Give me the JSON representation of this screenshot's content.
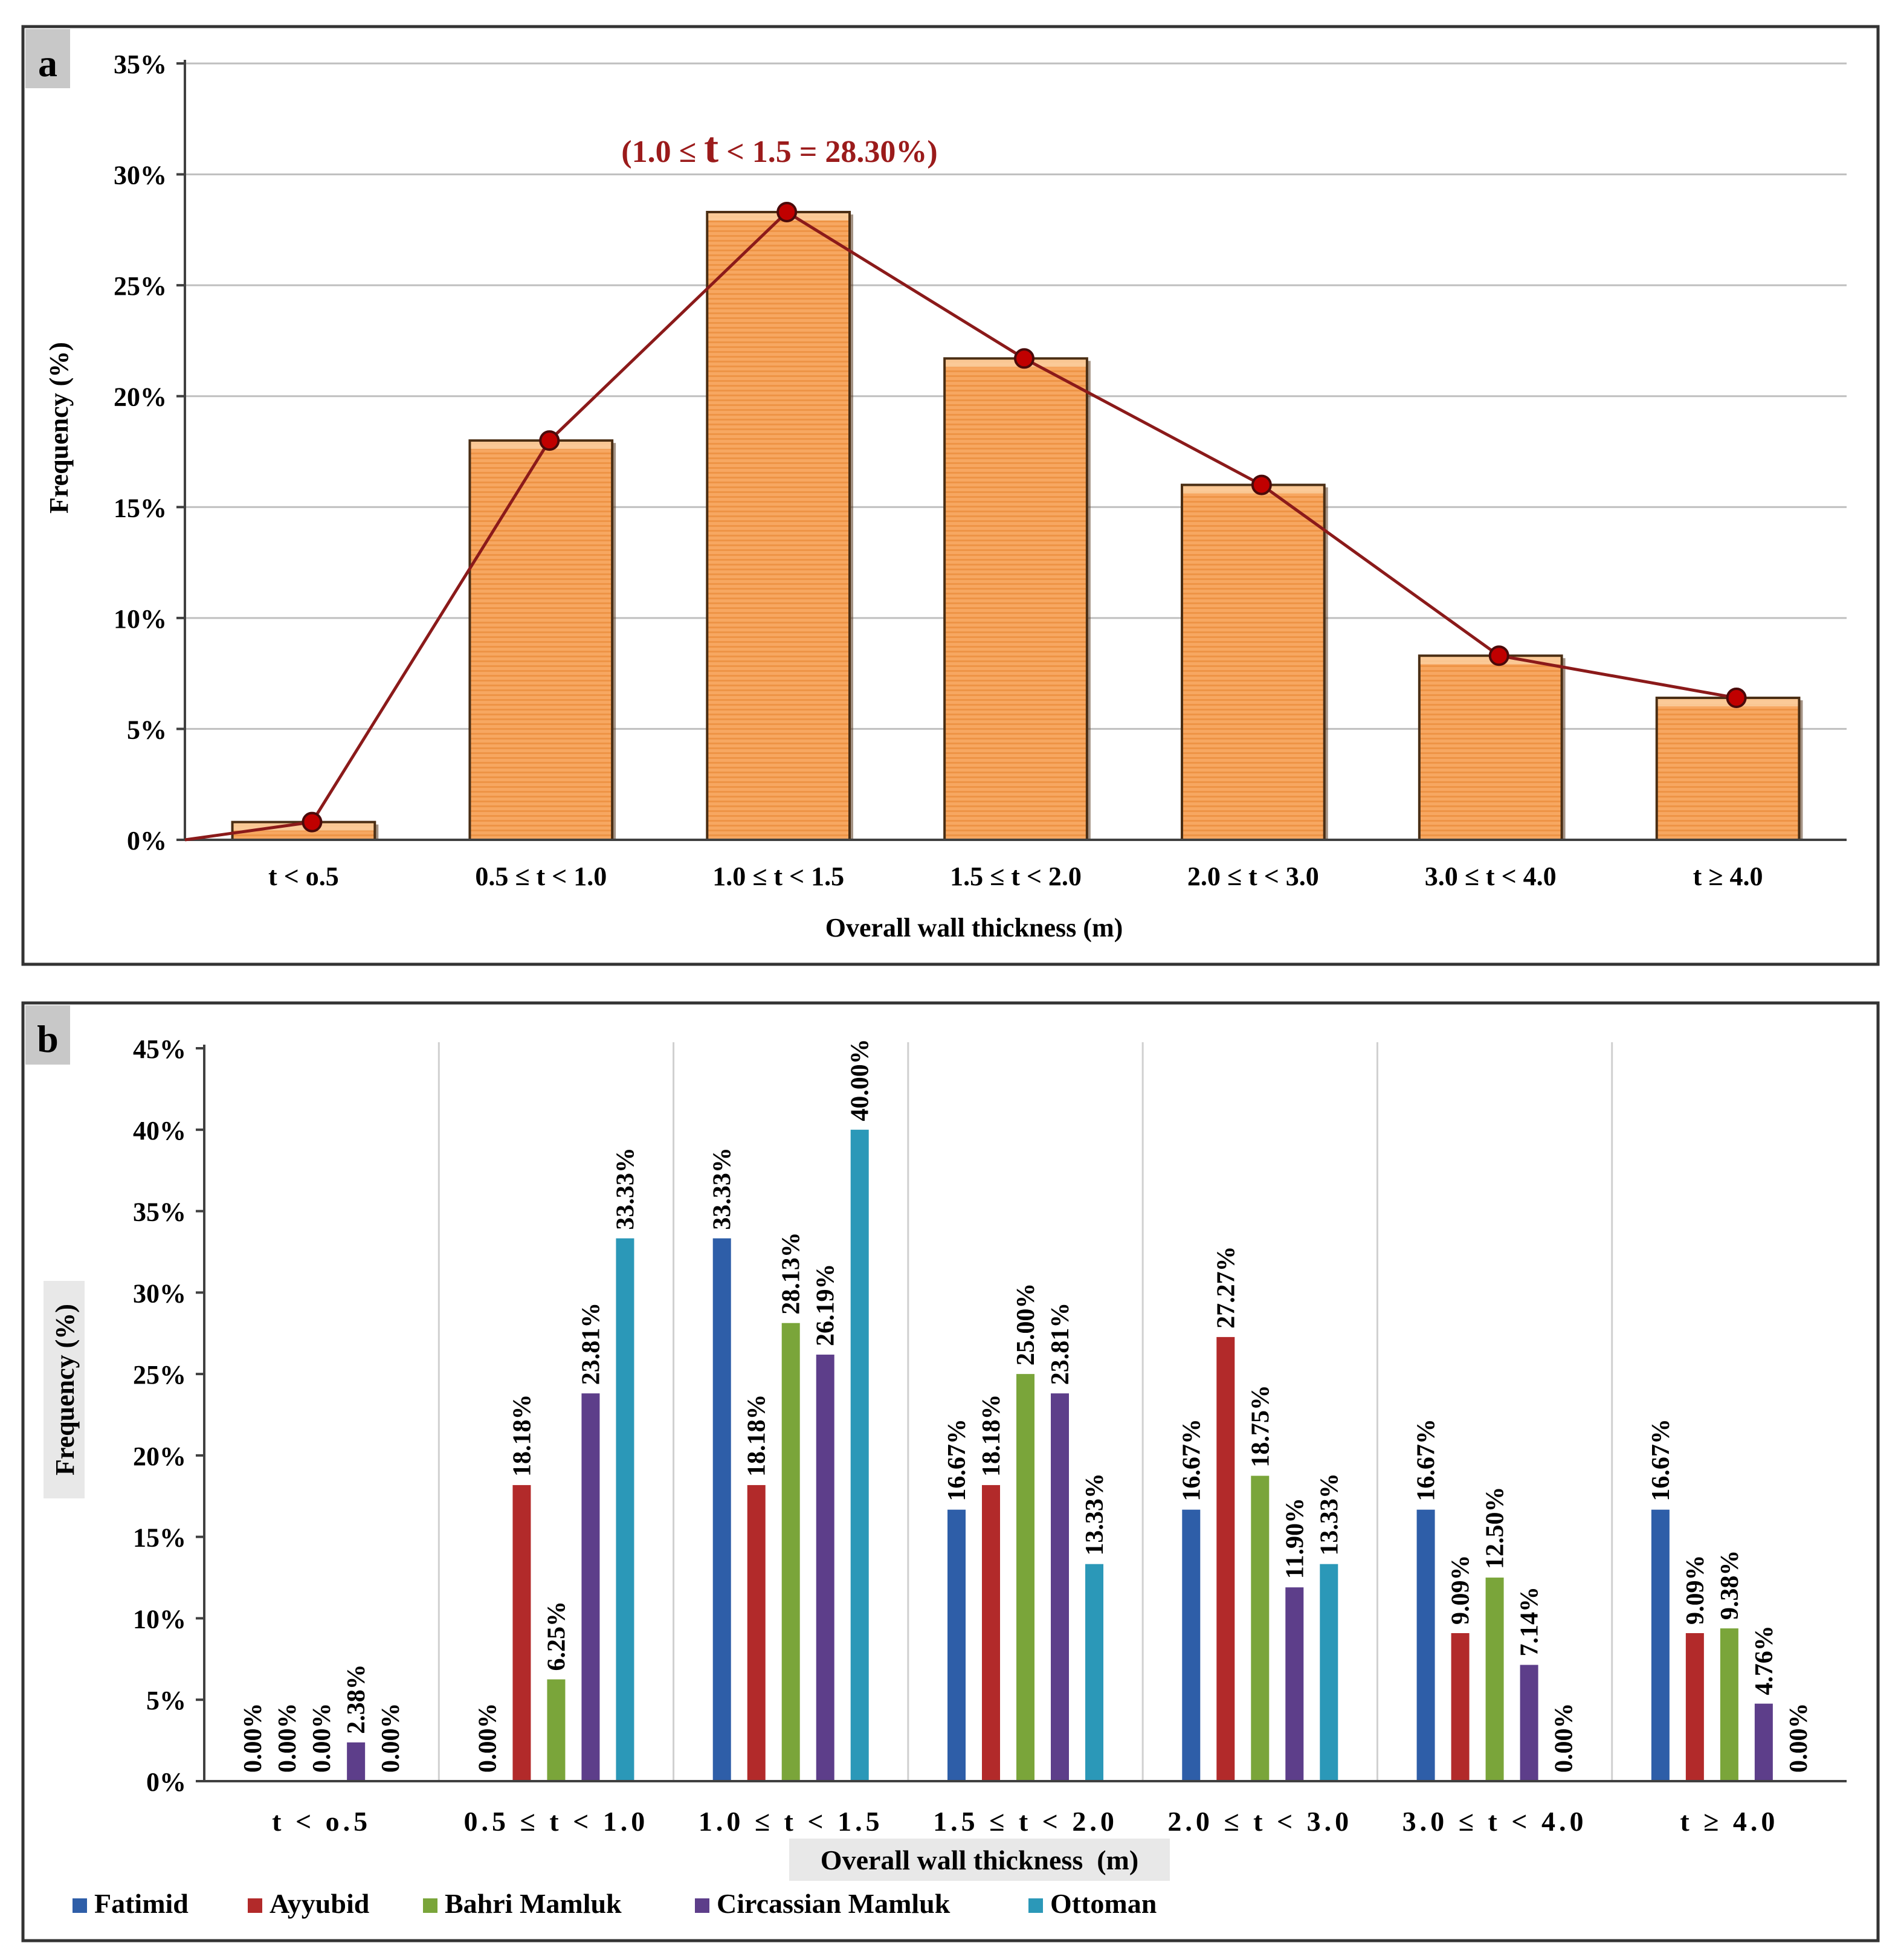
{
  "panels": {
    "a": {
      "label": "a"
    },
    "b": {
      "label": "b"
    }
  },
  "colors": {
    "bar_a": "#f5a05a",
    "line_a": "#8b1a1a",
    "point_a": "#c00000",
    "annotation": "#9b1b1b",
    "grid": "#bfbfbf",
    "axis": "#404040",
    "text": "#000000",
    "panel_border": "#333333",
    "panel_label_bg": "#c8c8c8"
  },
  "chart_data": [
    {
      "id": "a",
      "type": "bar",
      "title": "",
      "categories": [
        "t < o.5",
        "0.5 ≤ t < 1.0",
        "1.0 ≤ t < 1.5",
        "1.5 ≤ t < 2.0",
        "2.0 ≤ t < 3.0",
        "3.0 ≤ t < 4.0",
        "t ≥ 4.0"
      ],
      "values": [
        0.8,
        18.0,
        28.3,
        21.7,
        16.0,
        8.3,
        6.4
      ],
      "line_overlay": {
        "start": 0,
        "values": [
          0.8,
          18.0,
          28.3,
          21.7,
          16.0,
          8.3,
          6.4
        ]
      },
      "xlabel": "Overall wall thickness (m)",
      "ylabel": "Frequency (%)",
      "ylim": [
        0,
        35
      ],
      "yticks": [
        0,
        5,
        10,
        15,
        20,
        25,
        30,
        35
      ],
      "ytick_labels": [
        "0%",
        "5%",
        "10%",
        "15%",
        "20%",
        "25%",
        "30%",
        "35%"
      ],
      "grid": true,
      "annotation": {
        "pre": "(1.0 ≤ ",
        "emph": "t",
        "post": " < 1.5 = 28.30%)"
      }
    },
    {
      "id": "b",
      "type": "bar",
      "title": "",
      "categories": [
        "t < o.5",
        "0.5 ≤ t < 1.0",
        "1.0 ≤ t < 1.5",
        "1.5 ≤ t < 2.0",
        "2.0 ≤ t < 3.0",
        "3.0 ≤ t < 4.0",
        "t ≥ 4.0"
      ],
      "series": [
        {
          "name": "Fatimid",
          "color": "#2e5ea8",
          "values": [
            0.0,
            0.0,
            33.33,
            16.67,
            16.67,
            16.67,
            16.67
          ],
          "labels": [
            "0.00%",
            "0.00%",
            "33.33%",
            "16.67%",
            "16.67%",
            "16.67%",
            "16.67%"
          ]
        },
        {
          "name": "Ayyubid",
          "color": "#b22a2a",
          "values": [
            0.0,
            18.18,
            18.18,
            18.18,
            27.27,
            9.09,
            9.09
          ],
          "labels": [
            "0.00%",
            "18.18%",
            "18.18%",
            "18.18%",
            "27.27%",
            "9.09%",
            "9.09%"
          ]
        },
        {
          "name": "Bahri Mamluk",
          "color": "#7aa53a",
          "values": [
            0.0,
            6.25,
            28.13,
            25.0,
            18.75,
            12.5,
            9.38
          ],
          "labels": [
            "0.00%",
            "6.25%",
            "28.13%",
            "25.00%",
            "18.75%",
            "12.50%",
            "9.38%"
          ]
        },
        {
          "name": "Circassian Mamluk",
          "color": "#5d3e8a",
          "values": [
            2.38,
            23.81,
            26.19,
            23.81,
            11.9,
            7.14,
            4.76
          ],
          "labels": [
            "2.38%",
            "23.81%",
            "26.19%",
            "23.81%",
            "11.90%",
            "7.14%",
            "4.76%"
          ]
        },
        {
          "name": "Ottoman",
          "color": "#2b98b8",
          "values": [
            0.0,
            33.33,
            40.0,
            13.33,
            13.33,
            0.0,
            0.0
          ],
          "labels": [
            "0.00%",
            "33.33%",
            "40.00%",
            "13.33%",
            "13.33%",
            "0.00%",
            "0.00%"
          ]
        }
      ],
      "xlabel": "Overall wall thickness  (m)",
      "ylabel": "Frequency (%)",
      "ylim": [
        0,
        45
      ],
      "yticks": [
        0,
        5,
        10,
        15,
        20,
        25,
        30,
        35,
        40,
        45
      ],
      "ytick_labels": [
        "0%",
        "5%",
        "10%",
        "15%",
        "20%",
        "25%",
        "30%",
        "35%",
        "40%",
        "45%"
      ],
      "grid": false,
      "legend": "bottom-left"
    }
  ]
}
